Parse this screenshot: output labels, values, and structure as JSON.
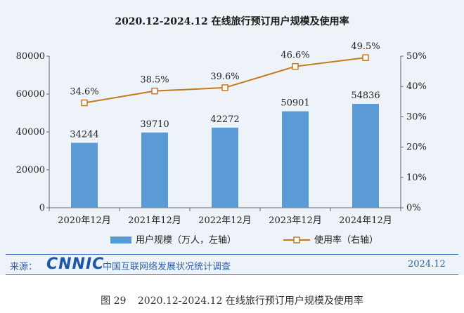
{
  "chart_data": {
    "type": "bar+line",
    "title": "2020.12-2024.12 在线旅行预订用户规模及使用率",
    "categories": [
      "2020年12月",
      "2021年12月",
      "2022年12月",
      "2023年12月",
      "2024年12月"
    ],
    "series": [
      {
        "name": "用户规模（万人，左轴）",
        "type": "bar",
        "axis": "left",
        "values": [
          34244,
          39710,
          42272,
          50901,
          54836
        ],
        "labels": [
          "34244",
          "39710",
          "42272",
          "50901",
          "54836"
        ],
        "color": "#5b9bd5"
      },
      {
        "name": "使用率（右轴）",
        "type": "line",
        "axis": "right",
        "values": [
          34.6,
          38.5,
          39.6,
          46.6,
          49.5
        ],
        "labels": [
          "34.6%",
          "38.5%",
          "39.6%",
          "46.6%",
          "49.5%"
        ],
        "color": "#c5781f"
      }
    ],
    "y_left": {
      "range": [
        0,
        80000
      ],
      "ticks": [
        "0",
        "20000",
        "40000",
        "60000",
        "80000"
      ]
    },
    "y_right": {
      "range": [
        0,
        50
      ],
      "ticks": [
        "0%",
        "10%",
        "20%",
        "30%",
        "40%",
        "50%"
      ]
    },
    "legend_position": "bottom",
    "grid": false
  },
  "footer": {
    "source_label": "来源：",
    "logo_text": "CNNIC",
    "source_org": "中国互联网络发展状况统计调查",
    "date": "2024.12"
  },
  "caption": {
    "figure_number": "图 29",
    "text": "2020.12-2024.12 在线旅行预订用户规模及使用率"
  },
  "colors": {
    "panel": "#eef3f9",
    "bar": "#5b9bd5",
    "line": "#c5781f",
    "accent": "#2d5fa6"
  }
}
